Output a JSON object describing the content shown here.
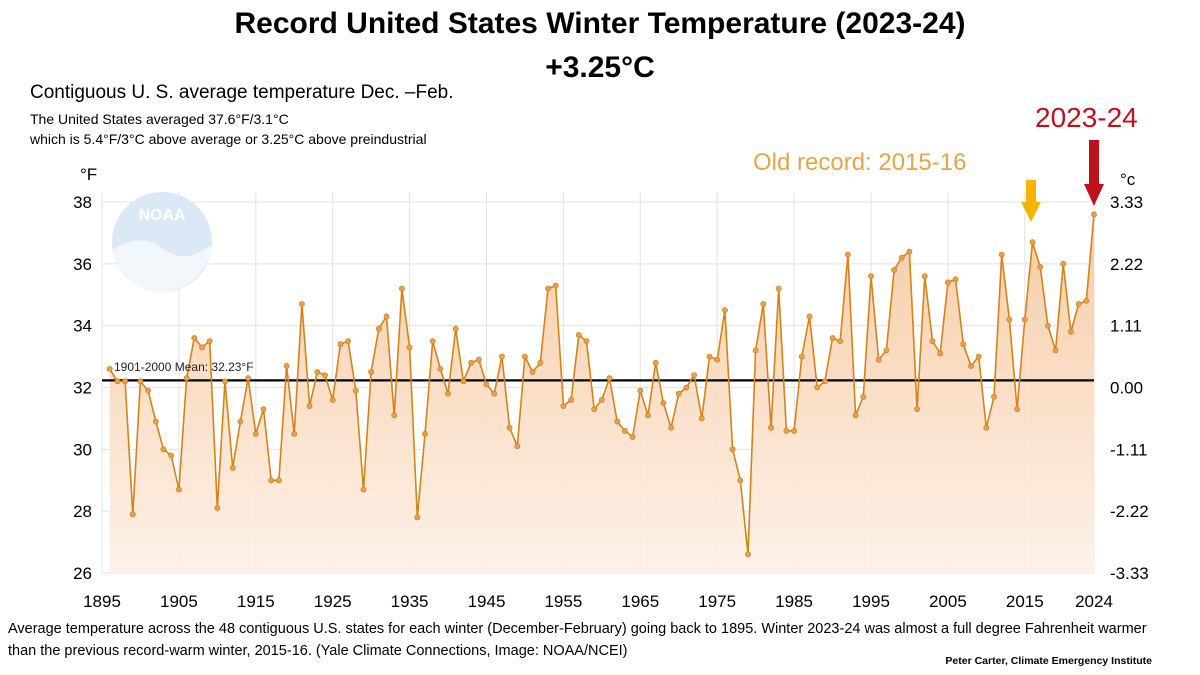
{
  "title": "Record United States Winter Temperature (2023-24)",
  "headline": "+3.25°C",
  "subtitle": "Contiguous U. S. average temperature Dec. –Feb.",
  "note_line1": "The United States averaged 37.6°F/3.1°C",
  "note_line2": "which is 5.4°F/3°C above average or 3.25°C above preindustrial",
  "caption": "Average temperature across the 48 contiguous U.S. states for each winter (December-February) going back to 1895. Winter 2023-24 was almost a full degree Fahrenheit warmer than the previous record-warm winter, 2015-16. (Yale Climate Connections, Image: NOAA/NCEI)",
  "credit": "Peter Carter, Climate Emergency Institute",
  "logo_text": "NOAA",
  "colors": {
    "line": "#d4831a",
    "fill_top": "#f6c9a0",
    "record_new": "#c0101a",
    "record_old": "#f5b400",
    "old_label": "#e0a64a",
    "mean_line": "#000000"
  },
  "chart_data": {
    "type": "area",
    "left_axis_label": "°F",
    "right_axis_label": "°c",
    "xlim": [
      1895,
      2024
    ],
    "ylim": [
      26,
      38
    ],
    "x_ticks": [
      "1895",
      "1905",
      "1915",
      "1925",
      "1935",
      "1945",
      "1955",
      "1965",
      "1975",
      "1985",
      "1995",
      "2005",
      "2015",
      "2024"
    ],
    "y_ticks_left": [
      "26",
      "28",
      "30",
      "32",
      "34",
      "36",
      "38"
    ],
    "y_ticks_right": [
      "-3.33",
      "-2.22",
      "-1.11",
      "0.00",
      "1.11",
      "2.22",
      "3.33"
    ],
    "mean_value": 32.23,
    "mean_label": "1901-2000 Mean: 32.23°F",
    "old_record_label": "Old record: 2015-16",
    "new_record_label": "2023-24",
    "old_record_year": 2016,
    "new_record_year": 2024,
    "series": [
      {
        "x": [
          1896,
          1897,
          1898,
          1899,
          1900,
          1901,
          1902,
          1903,
          1904,
          1905,
          1906,
          1907,
          1908,
          1909,
          1910,
          1911,
          1912,
          1913,
          1914,
          1915,
          1916,
          1917,
          1918,
          1919,
          1920,
          1921,
          1922,
          1923,
          1924,
          1925,
          1926,
          1927,
          1928,
          1929,
          1930,
          1931,
          1932,
          1933,
          1934,
          1935,
          1936,
          1937,
          1938,
          1939,
          1940,
          1941,
          1942,
          1943,
          1944,
          1945,
          1946,
          1947,
          1948,
          1949,
          1950,
          1951,
          1952,
          1953,
          1954,
          1955,
          1956,
          1957,
          1958,
          1959,
          1960,
          1961,
          1962,
          1963,
          1964,
          1965,
          1966,
          1967,
          1968,
          1969,
          1970,
          1971,
          1972,
          1973,
          1974,
          1975,
          1976,
          1977,
          1978,
          1979,
          1980,
          1981,
          1982,
          1983,
          1984,
          1985,
          1986,
          1987,
          1988,
          1989,
          1990,
          1991,
          1992,
          1993,
          1994,
          1995,
          1996,
          1997,
          1998,
          1999,
          2000,
          2001,
          2002,
          2003,
          2004,
          2005,
          2006,
          2007,
          2008,
          2009,
          2010,
          2011,
          2012,
          2013,
          2014,
          2015,
          2016,
          2017,
          2018,
          2019,
          2020,
          2021,
          2022,
          2023,
          2024
        ],
        "values": [
          32.6,
          32.2,
          32.2,
          27.9,
          32.2,
          31.9,
          30.9,
          30.0,
          29.8,
          28.7,
          32.3,
          33.6,
          33.3,
          33.5,
          28.1,
          32.2,
          29.4,
          30.9,
          32.3,
          30.5,
          31.3,
          29.0,
          29.0,
          32.7,
          30.5,
          34.7,
          31.4,
          32.5,
          32.4,
          31.6,
          33.4,
          33.5,
          31.9,
          28.7,
          32.5,
          33.9,
          34.3,
          31.1,
          35.2,
          33.3,
          27.8,
          30.5,
          33.5,
          32.6,
          31.8,
          33.9,
          32.2,
          32.8,
          32.9,
          32.1,
          31.8,
          33.0,
          30.7,
          30.1,
          33.0,
          32.5,
          32.8,
          35.2,
          35.3,
          31.4,
          31.6,
          33.7,
          33.5,
          31.3,
          31.6,
          32.3,
          30.9,
          30.6,
          30.4,
          31.9,
          31.1,
          32.8,
          31.5,
          30.7,
          31.8,
          32.0,
          32.4,
          31.0,
          33.0,
          32.9,
          34.5,
          30.0,
          29.0,
          26.6,
          33.2,
          34.7,
          30.7,
          35.2,
          30.6,
          30.6,
          33.0,
          34.3,
          32.0,
          32.2,
          33.6,
          33.5,
          36.3,
          31.1,
          31.7,
          35.6,
          32.9,
          33.2,
          35.8,
          36.2,
          36.4,
          31.3,
          35.6,
          33.5,
          33.1,
          35.4,
          35.5,
          33.4,
          32.7,
          33.0,
          30.7,
          31.7,
          36.3,
          34.2,
          31.3,
          34.2,
          36.7,
          35.9,
          34.0,
          33.2,
          36.0,
          33.8,
          34.7,
          34.8,
          37.6
        ]
      }
    ]
  }
}
